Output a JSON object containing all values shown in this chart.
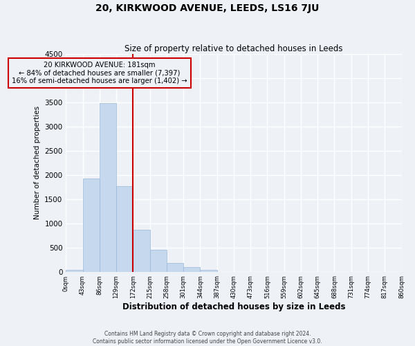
{
  "title": "20, KIRKWOOD AVENUE, LEEDS, LS16 7JU",
  "subtitle": "Size of property relative to detached houses in Leeds",
  "xlabel": "Distribution of detached houses by size in Leeds",
  "ylabel": "Number of detached properties",
  "bar_color": "#c5d8ee",
  "bar_edge_color": "#9ab8d8",
  "background_color": "#eef2f7",
  "grid_color": "#ffffff",
  "annotation_box_color": "#cc0000",
  "vline_color": "#cc0000",
  "bins": [
    0,
    43,
    86,
    129,
    172,
    215,
    258,
    301,
    344,
    387,
    430,
    473,
    516,
    559,
    602,
    645,
    688,
    731,
    774,
    817,
    860
  ],
  "bin_labels": [
    "0sqm",
    "43sqm",
    "86sqm",
    "129sqm",
    "172sqm",
    "215sqm",
    "258sqm",
    "301sqm",
    "344sqm",
    "387sqm",
    "430sqm",
    "473sqm",
    "516sqm",
    "559sqm",
    "602sqm",
    "645sqm",
    "688sqm",
    "731sqm",
    "774sqm",
    "817sqm",
    "860sqm"
  ],
  "bar_heights": [
    40,
    1930,
    3490,
    1770,
    860,
    450,
    185,
    90,
    40,
    0,
    0,
    0,
    0,
    0,
    0,
    0,
    0,
    0,
    0,
    0
  ],
  "vline_x": 172,
  "ylim": [
    0,
    4500
  ],
  "yticks": [
    0,
    500,
    1000,
    1500,
    2000,
    2500,
    3000,
    3500,
    4000,
    4500
  ],
  "annotation_line1": "20 KIRKWOOD AVENUE: 181sqm",
  "annotation_line2": "← 84% of detached houses are smaller (7,397)",
  "annotation_line3": "16% of semi-detached houses are larger (1,402) →",
  "footnote1": "Contains HM Land Registry data © Crown copyright and database right 2024.",
  "footnote2": "Contains public sector information licensed under the Open Government Licence v3.0."
}
